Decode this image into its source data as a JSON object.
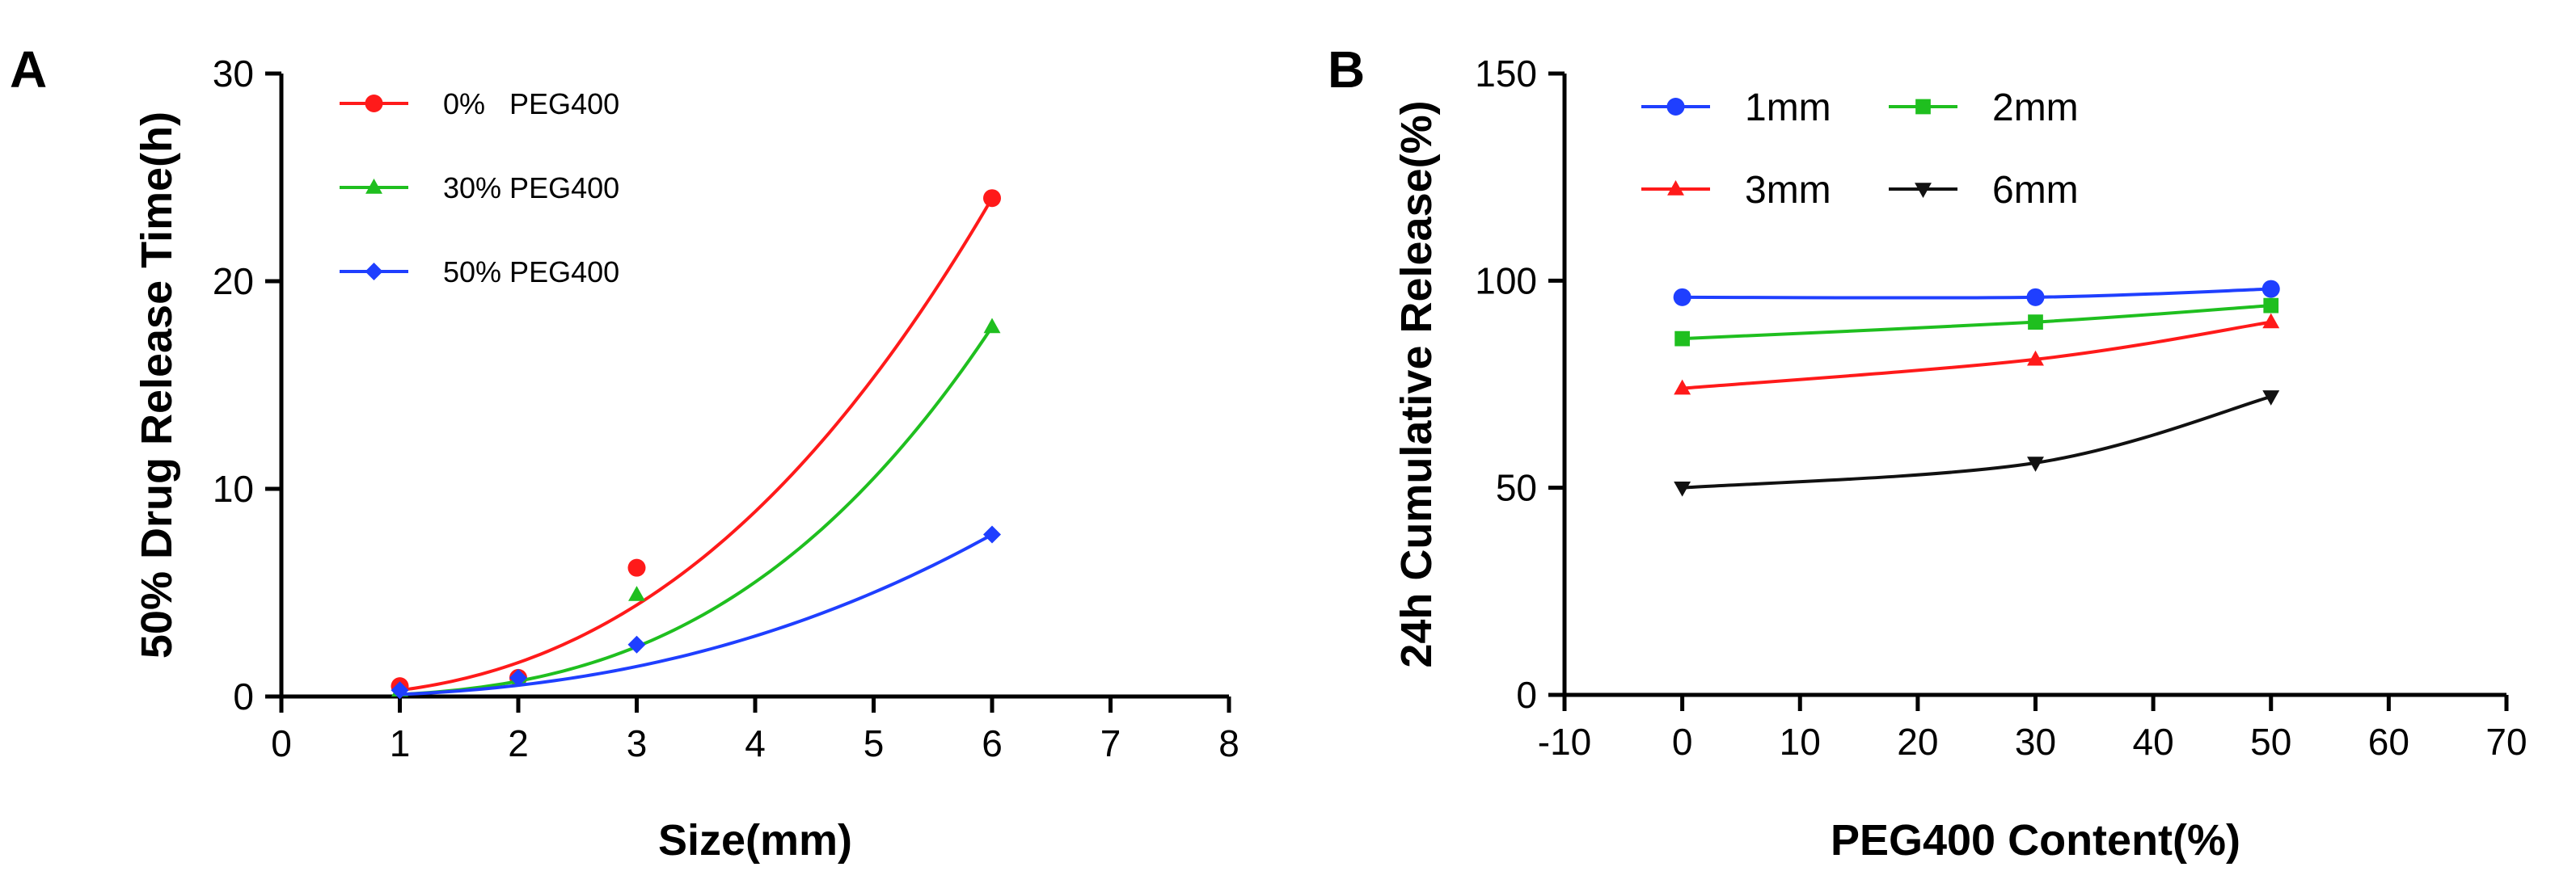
{
  "chart_data": [
    {
      "panel_letter": "A",
      "type": "scatter",
      "xlabel": "Size(mm)",
      "ylabel": "50% Drug Release Time(h)",
      "xlim": [
        0,
        8
      ],
      "ylim": [
        0,
        30
      ],
      "xticks": [
        0,
        1,
        2,
        3,
        4,
        5,
        6,
        7,
        8
      ],
      "yticks": [
        0,
        10,
        20,
        30
      ],
      "grid": false,
      "legend_position": "top-left",
      "series": [
        {
          "name": "0%   PEG400",
          "color": "#ff1a1a",
          "marker": "circle",
          "x": [
            1,
            2,
            3,
            6
          ],
          "y": [
            0.5,
            0.9,
            6.2,
            24.0
          ],
          "fit": [
            0.4,
            1.2,
            1.5
          ]
        },
        {
          "name": "30% PEG400",
          "color": "#1fbf1f",
          "marker": "triangle-up",
          "x": [
            1,
            2,
            3,
            6
          ],
          "y": [
            0.3,
            0.9,
            4.9,
            17.8
          ],
          "fit": [
            0.2,
            1.25,
            1.2
          ]
        },
        {
          "name": "50% PEG400",
          "color": "#1f3fff",
          "marker": "diamond",
          "x": [
            1,
            2,
            3,
            6
          ],
          "y": [
            0.3,
            0.9,
            2.5,
            7.8
          ],
          "fit": [
            0.2,
            0.86,
            1.35
          ]
        }
      ]
    },
    {
      "panel_letter": "B",
      "type": "line",
      "xlabel": "PEG400 Content(%)",
      "ylabel": "24h Cumulative Release(%)",
      "xlim": [
        -10,
        70
      ],
      "ylim": [
        0,
        150
      ],
      "xticks": [
        -10,
        0,
        10,
        20,
        30,
        40,
        50,
        60,
        70
      ],
      "yticks": [
        0,
        50,
        100,
        150
      ],
      "grid": false,
      "legend_position": "top-left",
      "series": [
        {
          "name": "1mm",
          "color": "#1f3fff",
          "marker": "circle",
          "x": [
            0,
            30,
            50
          ],
          "y": [
            96,
            96,
            98
          ]
        },
        {
          "name": "2mm",
          "color": "#1fbf1f",
          "marker": "square",
          "x": [
            0,
            30,
            50
          ],
          "y": [
            86,
            90,
            94
          ]
        },
        {
          "name": "3mm",
          "color": "#ff1a1a",
          "marker": "triangle-up",
          "x": [
            0,
            30,
            50
          ],
          "y": [
            74,
            81,
            90
          ]
        },
        {
          "name": "6mm",
          "color": "#111111",
          "marker": "triangle-down",
          "x": [
            0,
            30,
            50
          ],
          "y": [
            50,
            56,
            72
          ]
        }
      ]
    }
  ]
}
